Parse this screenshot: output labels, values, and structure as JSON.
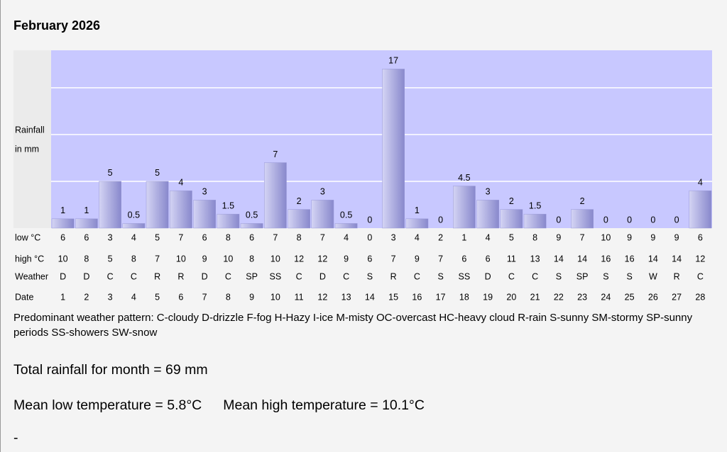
{
  "title": "February 2026",
  "chart_data": {
    "type": "bar",
    "y_label_lines": [
      "Rainfall",
      "in mm"
    ],
    "categories_label": "Date",
    "categories": [
      1,
      2,
      3,
      4,
      5,
      6,
      7,
      8,
      9,
      10,
      11,
      12,
      13,
      14,
      15,
      16,
      17,
      18,
      19,
      20,
      21,
      22,
      23,
      24,
      25,
      26,
      27,
      28
    ],
    "values": [
      1,
      1,
      5,
      0.5,
      5,
      4,
      3,
      1.5,
      0.5,
      7,
      2,
      3,
      0.5,
      0,
      17,
      1,
      0,
      4.5,
      3,
      2,
      1.5,
      0,
      2,
      0,
      0,
      0,
      0,
      4
    ],
    "ylim": [
      0,
      19
    ],
    "grid_lines": [
      5,
      10,
      15
    ],
    "grid": true,
    "color": "#9a9ad8",
    "rows": [
      {
        "label": "low °C",
        "values": [
          6,
          6,
          3,
          4,
          5,
          7,
          6,
          8,
          6,
          7,
          8,
          7,
          4,
          0,
          3,
          4,
          2,
          1,
          4,
          5,
          8,
          9,
          7,
          10,
          9,
          9,
          9,
          6
        ]
      },
      {
        "label": "high °C",
        "values": [
          10,
          8,
          5,
          8,
          7,
          10,
          9,
          10,
          8,
          10,
          12,
          12,
          9,
          6,
          7,
          9,
          7,
          6,
          6,
          11,
          13,
          14,
          14,
          16,
          16,
          14,
          14,
          12
        ]
      },
      {
        "label": "Weather",
        "values": [
          "D",
          "D",
          "C",
          "C",
          "R",
          "R",
          "D",
          "C",
          "SP",
          "SS",
          "C",
          "D",
          "C",
          "S",
          "R",
          "C",
          "S",
          "SS",
          "D",
          "C",
          "C",
          "S",
          "SP",
          "S",
          "S",
          "W",
          "R",
          "C"
        ]
      }
    ]
  },
  "legend": "Predominant weather pattern: C-cloudy D-drizzle F-fog H-Hazy I-ice M-misty OC-overcast HC-heavy cloud R-rain S-sunny SM-stormy SP-sunny periods SS-showers SW-snow",
  "total": "Total rainfall for month = 69 mm",
  "mean_low": "Mean low temperature = 5.8°C",
  "mean_high": "Mean high temperature = 10.1°C",
  "footer": "-"
}
